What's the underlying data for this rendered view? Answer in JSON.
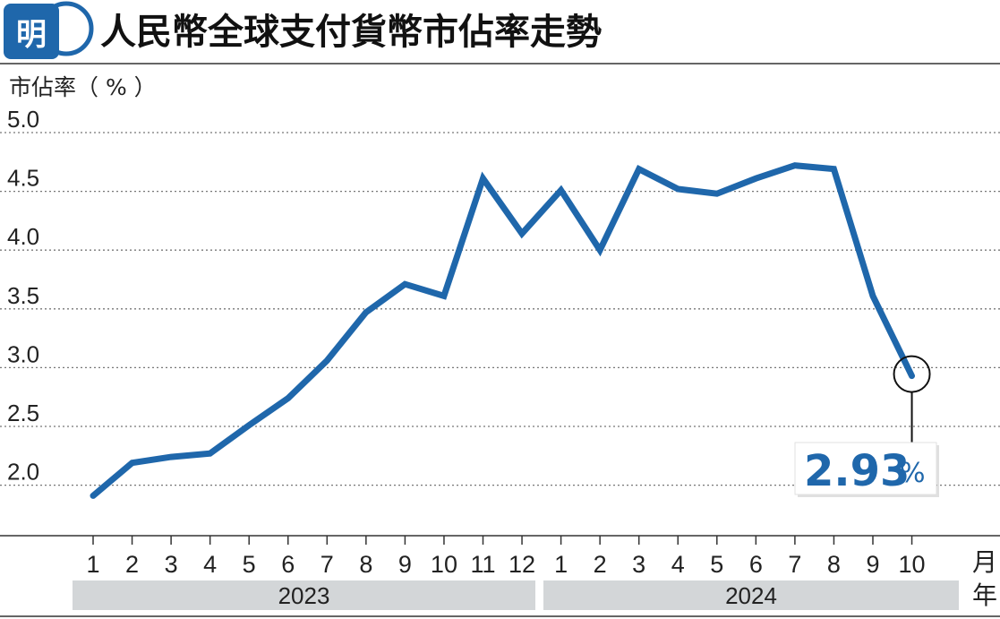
{
  "header": {
    "logo_text": "明",
    "title": "人民幣全球支付貨幣市佔率走勢"
  },
  "chart_data": {
    "type": "line",
    "title": "人民幣全球支付貨幣市佔率走勢",
    "ylabel": "市佔率（ % ）",
    "xlabel_month": "月",
    "xlabel_year": "年",
    "ylim": [
      1.65,
      5.0
    ],
    "y_ticks": [
      "5.0",
      "4.5",
      "4.0",
      "3.5",
      "3.0",
      "2.5",
      "2.0"
    ],
    "y_tick_values": [
      5.0,
      4.5,
      4.0,
      3.5,
      3.0,
      2.5,
      2.0
    ],
    "grid": "horizontal-dotted",
    "categories": [
      "1",
      "2",
      "3",
      "4",
      "5",
      "6",
      "7",
      "8",
      "9",
      "10",
      "11",
      "12",
      "1",
      "2",
      "3",
      "4",
      "5",
      "6",
      "7",
      "8",
      "9",
      "10"
    ],
    "years": [
      {
        "label": "2023",
        "start": 0,
        "end": 11
      },
      {
        "label": "2024",
        "start": 12,
        "end": 21
      }
    ],
    "series": [
      {
        "values": [
          1.91,
          2.19,
          2.24,
          2.27,
          2.51,
          2.74,
          3.06,
          3.47,
          3.71,
          3.61,
          4.61,
          4.14,
          4.51,
          4.0,
          4.69,
          4.52,
          4.48,
          4.61,
          4.72,
          4.69,
          3.61,
          2.93
        ],
        "color": "#1f67ab"
      }
    ],
    "callout": {
      "value": "2.93",
      "unit": "%",
      "index": 21
    }
  },
  "colors": {
    "line": "#1f67ab",
    "grid": "#777777",
    "year_band": "#d3d6d8",
    "logo": "#1f67ab"
  }
}
